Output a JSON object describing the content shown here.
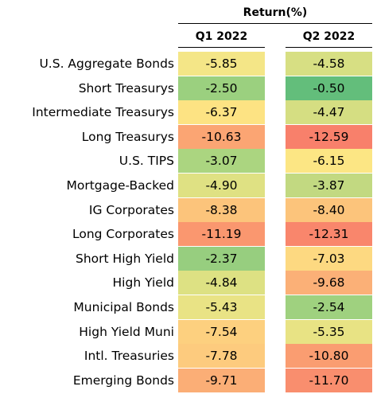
{
  "chart_data": {
    "type": "table",
    "title": "Return(%)",
    "columns": [
      "Q1 2022",
      "Q2 2022"
    ],
    "rows": [
      {
        "label": "U.S. Aggregate Bonds",
        "values": [
          -5.85,
          -4.58
        ],
        "display": [
          "-5.85",
          "-4.58"
        ],
        "colors": [
          "#f4e687",
          "#d7df83"
        ]
      },
      {
        "label": "Short Treasurys",
        "values": [
          -2.5,
          -0.5
        ],
        "display": [
          "-2.50",
          "-0.50"
        ],
        "colors": [
          "#9bd07f",
          "#63be7b"
        ]
      },
      {
        "label": "Intermediate Treasurys",
        "values": [
          -6.37,
          -4.47
        ],
        "display": [
          "-6.37",
          "-4.47"
        ],
        "colors": [
          "#fde383",
          "#d5de82"
        ]
      },
      {
        "label": "Long Treasurys",
        "values": [
          -10.63,
          -12.59
        ],
        "display": [
          "-10.63",
          "-12.59"
        ],
        "colors": [
          "#fba573",
          "#f8806b"
        ]
      },
      {
        "label": "U.S. TIPS",
        "values": [
          -3.07,
          -6.15
        ],
        "display": [
          "-3.07",
          "-6.15"
        ],
        "colors": [
          "#abd580",
          "#fce684"
        ]
      },
      {
        "label": "Mortgage-Backed",
        "values": [
          -4.9,
          -3.87
        ],
        "display": [
          "-4.90",
          "-3.87"
        ],
        "colors": [
          "#dfe183",
          "#c2d981"
        ]
      },
      {
        "label": "IG Corporates",
        "values": [
          -8.38,
          -8.4
        ],
        "display": [
          "-8.38",
          "-8.40"
        ],
        "colors": [
          "#fcc47b",
          "#fcc47b"
        ]
      },
      {
        "label": "Long Corporates",
        "values": [
          -11.19,
          -12.31
        ],
        "display": [
          "-11.19",
          "-12.31"
        ],
        "colors": [
          "#fa976f",
          "#f9866c"
        ]
      },
      {
        "label": "Short High Yield",
        "values": [
          -2.37,
          -7.03
        ],
        "display": [
          "-2.37",
          "-7.03"
        ],
        "colors": [
          "#97ce7f",
          "#fdd981"
        ]
      },
      {
        "label": "High Yield",
        "values": [
          -4.84,
          -9.68
        ],
        "display": [
          "-4.84",
          "-9.68"
        ],
        "colors": [
          "#ddE183",
          "#fbb077"
        ]
      },
      {
        "label": "Municipal Bonds",
        "values": [
          -5.43,
          -2.54
        ],
        "display": [
          "-5.43",
          "-2.54"
        ],
        "colors": [
          "#e9e385",
          "#9fd17f"
        ]
      },
      {
        "label": "High Yield Muni",
        "values": [
          -7.54,
          -5.35
        ],
        "display": [
          "-7.54",
          "-5.35"
        ],
        "colors": [
          "#fdd07f",
          "#e8e384"
        ]
      },
      {
        "label": "Intl. Treasuries",
        "values": [
          -7.78,
          -10.8
        ],
        "display": [
          "-7.78",
          "-10.80"
        ],
        "colors": [
          "#fdcb7e",
          "#fa9d71"
        ]
      },
      {
        "label": "Emerging Bonds",
        "values": [
          -9.71,
          -11.7
        ],
        "display": [
          "-9.71",
          "-11.70"
        ],
        "colors": [
          "#fbae76",
          "#f98e6e"
        ]
      }
    ]
  }
}
